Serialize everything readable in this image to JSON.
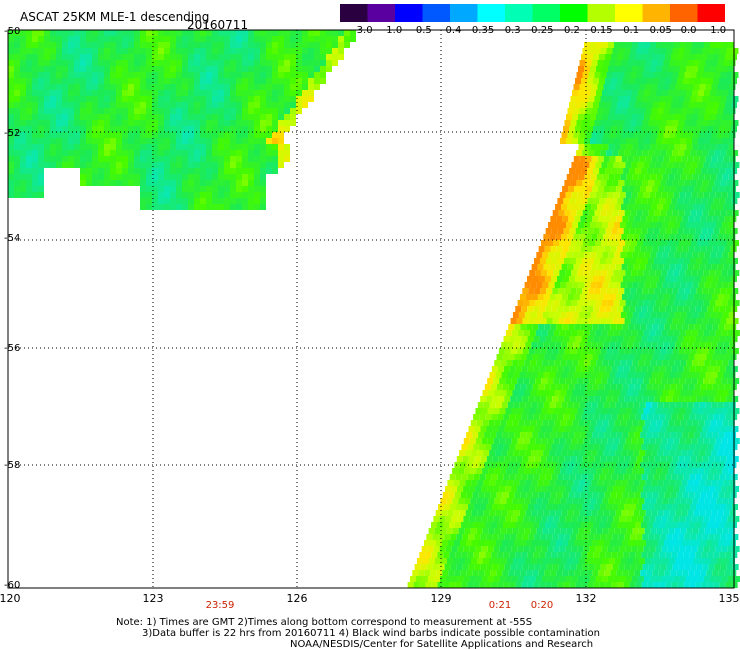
{
  "header": {
    "title": "ASCAT 25KM MLE-1 descending",
    "date": "20160711"
  },
  "colorbar": {
    "labels": [
      "-3.0",
      "-1.0",
      "-0.5",
      "-0.4",
      "-0.35",
      "-0.3",
      "-0.25",
      "-0.2",
      "-0.15",
      "-0.1",
      "-0.05",
      "0.0",
      "1.0"
    ],
    "colors": [
      "#2a0040",
      "#5a00a0",
      "#0000ff",
      "#0058ff",
      "#00a8ff",
      "#00ffff",
      "#00ffb4",
      "#00ff64",
      "#00ff00",
      "#b4ff00",
      "#ffff00",
      "#ffb400",
      "#ff6400",
      "#ff0000"
    ]
  },
  "axes": {
    "lat_labels": [
      "-50",
      "-52",
      "-54",
      "-56",
      "-58",
      "-60"
    ],
    "lon_labels": [
      "120",
      "123",
      "126",
      "129",
      "132",
      "135"
    ]
  },
  "times": [
    "23:59",
    "0:21",
    "0:20"
  ],
  "notes": {
    "line1": "Note: 1) Times are GMT 2)Times along bottom correspond to measurement at -55S",
    "line2": "3)Data buffer is 22 hrs from 20160711 4) Black wind barbs indicate possible contamination",
    "line3": "NOAA/NESDIS/Center for Satellite Applications and Research"
  }
}
